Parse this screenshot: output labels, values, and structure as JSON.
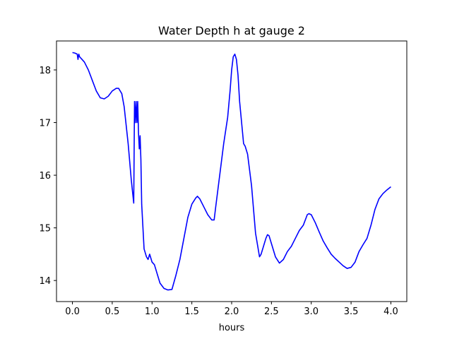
{
  "chart_data": {
    "type": "line",
    "title": "Water Depth h at gauge 2",
    "xlabel": "hours",
    "ylabel": "",
    "xlim": [
      -0.2,
      4.2
    ],
    "ylim": [
      13.6,
      18.55
    ],
    "grid": false,
    "xticks": [
      0.0,
      0.5,
      1.0,
      1.5,
      2.0,
      2.5,
      3.0,
      3.5,
      4.0
    ],
    "xtick_labels": [
      "0.0",
      "0.5",
      "1.0",
      "1.5",
      "2.0",
      "2.5",
      "3.0",
      "3.5",
      "4.0"
    ],
    "yticks": [
      14,
      15,
      16,
      17,
      18
    ],
    "ytick_labels": [
      "14",
      "15",
      "16",
      "17",
      "18"
    ],
    "series": [
      {
        "color": "#0000ff",
        "x": [
          0.0,
          0.03,
          0.06,
          0.07,
          0.08,
          0.09,
          0.12,
          0.15,
          0.2,
          0.25,
          0.3,
          0.35,
          0.4,
          0.45,
          0.5,
          0.55,
          0.58,
          0.62,
          0.65,
          0.7,
          0.74,
          0.77,
          0.78,
          0.79,
          0.8,
          0.81,
          0.82,
          0.83,
          0.84,
          0.85,
          0.86,
          0.87,
          0.9,
          0.93,
          0.95,
          0.97,
          0.99,
          1.0,
          1.03,
          1.07,
          1.1,
          1.15,
          1.2,
          1.25,
          1.3,
          1.35,
          1.4,
          1.45,
          1.5,
          1.55,
          1.57,
          1.6,
          1.65,
          1.7,
          1.75,
          1.78,
          1.8,
          1.85,
          1.9,
          1.95,
          1.98,
          2.0,
          2.02,
          2.04,
          2.06,
          2.08,
          2.1,
          2.15,
          2.17,
          2.2,
          2.25,
          2.3,
          2.35,
          2.37,
          2.4,
          2.43,
          2.45,
          2.47,
          2.5,
          2.55,
          2.6,
          2.65,
          2.7,
          2.75,
          2.8,
          2.85,
          2.9,
          2.95,
          2.97,
          3.0,
          3.05,
          3.1,
          3.15,
          3.2,
          3.25,
          3.3,
          3.35,
          3.4,
          3.45,
          3.5,
          3.55,
          3.6,
          3.65,
          3.7,
          3.75,
          3.8,
          3.85,
          3.9,
          3.95,
          4.0
        ],
        "values": [
          18.33,
          18.32,
          18.3,
          18.2,
          18.3,
          18.25,
          18.2,
          18.15,
          18.0,
          17.8,
          17.6,
          17.47,
          17.45,
          17.5,
          17.6,
          17.65,
          17.65,
          17.55,
          17.3,
          16.6,
          15.9,
          15.47,
          17.4,
          17.0,
          17.4,
          17.0,
          17.4,
          16.8,
          16.5,
          16.75,
          16.3,
          15.45,
          14.6,
          14.45,
          14.4,
          14.5,
          14.4,
          14.35,
          14.3,
          14.1,
          13.95,
          13.85,
          13.82,
          13.83,
          14.1,
          14.4,
          14.8,
          15.2,
          15.45,
          15.57,
          15.6,
          15.55,
          15.4,
          15.25,
          15.15,
          15.15,
          15.4,
          16.0,
          16.6,
          17.1,
          17.6,
          18.0,
          18.25,
          18.3,
          18.2,
          17.9,
          17.4,
          16.6,
          16.55,
          16.4,
          15.8,
          14.9,
          14.45,
          14.5,
          14.65,
          14.8,
          14.87,
          14.85,
          14.7,
          14.45,
          14.33,
          14.4,
          14.55,
          14.65,
          14.8,
          14.95,
          15.05,
          15.25,
          15.27,
          15.25,
          15.1,
          14.92,
          14.75,
          14.62,
          14.5,
          14.42,
          14.35,
          14.28,
          14.23,
          14.25,
          14.35,
          14.55,
          14.68,
          14.8,
          15.05,
          15.35,
          15.55,
          15.65,
          15.72,
          15.78
        ]
      }
    ]
  }
}
